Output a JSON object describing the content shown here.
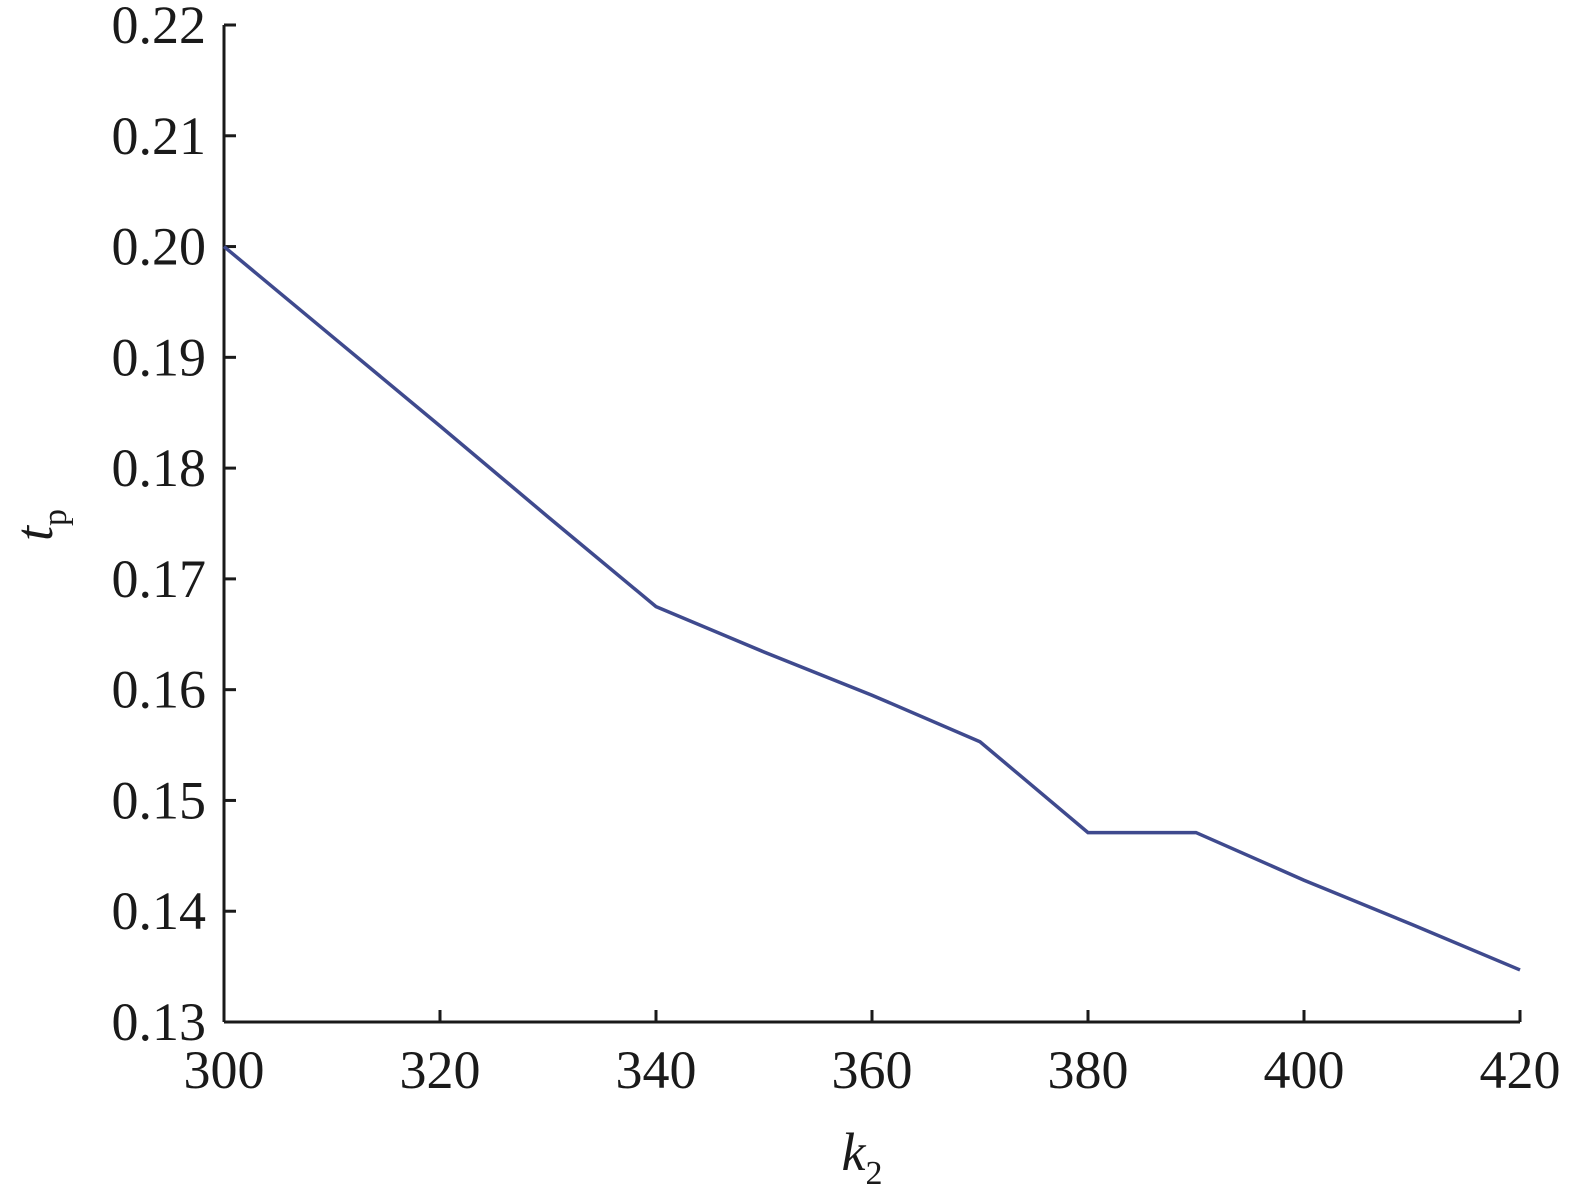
{
  "chart_data": {
    "type": "line",
    "xlabel": "k",
    "xlabel_sub": "2",
    "ylabel": "t",
    "ylabel_sub": "p",
    "x": [
      300,
      310,
      320,
      330,
      340,
      350,
      360,
      370,
      380,
      390,
      400,
      410,
      420
    ],
    "series": [
      {
        "color": "#3f4a8e",
        "values": [
          0.2,
          0.1919,
          0.1838,
          0.1756,
          0.1675,
          0.1634,
          0.1595,
          0.1553,
          0.1471,
          0.1471,
          0.1428,
          0.1388,
          0.1347
        ]
      }
    ],
    "xlim": [
      300,
      420
    ],
    "xticks": [
      300,
      320,
      340,
      360,
      380,
      400,
      420
    ],
    "ylim": [
      0.13,
      0.22
    ],
    "yticks": [
      0.13,
      0.14,
      0.15,
      0.16,
      0.17,
      0.18,
      0.19,
      {
        "value": 0.2,
        "label": "0.20"
      },
      0.21,
      0.22
    ]
  }
}
